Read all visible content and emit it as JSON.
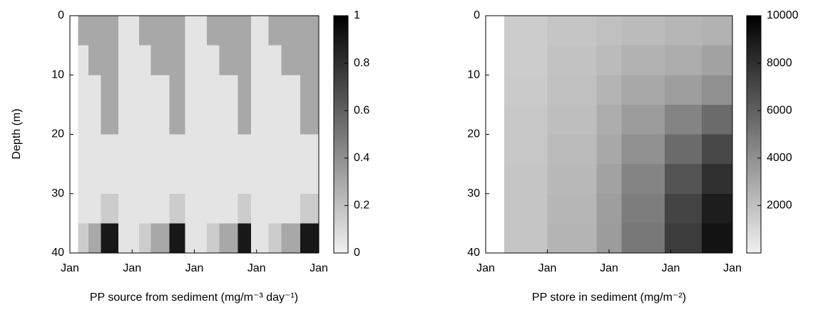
{
  "chart_data": [
    {
      "type": "heatmap",
      "xlabel": "PP source from sediment (mg/m⁻³ day⁻¹)",
      "ylabel": "Depth (m)",
      "xlim": [
        0,
        4
      ],
      "xticks": [
        {
          "value": 0,
          "label": "Jan"
        },
        {
          "value": 1,
          "label": "Jan"
        },
        {
          "value": 2,
          "label": "Jan"
        },
        {
          "value": 3,
          "label": "Jan"
        },
        {
          "value": 4,
          "label": "Jan"
        }
      ],
      "ylim": [
        0,
        40
      ],
      "y_inverted": true,
      "yticks": [
        0,
        10,
        20,
        30,
        40
      ],
      "x_edges": [
        0.13,
        0.3,
        0.5,
        0.78,
        1.11,
        1.3,
        1.6,
        1.85,
        2.2,
        2.4,
        2.7,
        2.91,
        3.19,
        3.4,
        3.7,
        4.0
      ],
      "y_edges": [
        0,
        5,
        10,
        15,
        20,
        25,
        30,
        35,
        40
      ],
      "values": [
        [
          0.3,
          0.3,
          0.3,
          0.05,
          0.3,
          0.3,
          0.3,
          0.05,
          0.3,
          0.3,
          0.3,
          0.05,
          0.3,
          0.3,
          0.3
        ],
        [
          0.05,
          0.3,
          0.3,
          0.05,
          0.05,
          0.3,
          0.3,
          0.05,
          0.05,
          0.3,
          0.3,
          0.05,
          0.05,
          0.3,
          0.3
        ],
        [
          0.05,
          0.05,
          0.3,
          0.05,
          0.05,
          0.05,
          0.3,
          0.05,
          0.05,
          0.05,
          0.3,
          0.05,
          0.05,
          0.05,
          0.3
        ],
        [
          0.05,
          0.05,
          0.3,
          0.05,
          0.05,
          0.05,
          0.3,
          0.05,
          0.05,
          0.05,
          0.3,
          0.05,
          0.05,
          0.05,
          0.3
        ],
        [
          0.05,
          0.05,
          0.05,
          0.05,
          0.05,
          0.05,
          0.05,
          0.05,
          0.05,
          0.05,
          0.05,
          0.05,
          0.05,
          0.05,
          0.05
        ],
        [
          0.05,
          0.05,
          0.05,
          0.05,
          0.05,
          0.05,
          0.05,
          0.05,
          0.05,
          0.05,
          0.05,
          0.05,
          0.05,
          0.05,
          0.05
        ],
        [
          0.05,
          0.05,
          0.15,
          0.05,
          0.05,
          0.05,
          0.15,
          0.05,
          0.05,
          0.05,
          0.15,
          0.05,
          0.05,
          0.05,
          0.15
        ],
        [
          0.15,
          0.3,
          0.9,
          0.05,
          0.15,
          0.3,
          0.9,
          0.05,
          0.15,
          0.3,
          0.9,
          0.05,
          0.15,
          0.3,
          0.9
        ]
      ],
      "clim": [
        0,
        1
      ],
      "cticks": [
        0,
        0.2,
        0.4,
        0.6,
        0.8,
        1
      ],
      "cmap": [
        "#f0f0f0",
        "#000000"
      ]
    },
    {
      "type": "heatmap",
      "xlabel": "PP store in sediment (mg/m⁻²)",
      "xlim": [
        0,
        4
      ],
      "xticks": [
        {
          "value": 0,
          "label": "Jan"
        },
        {
          "value": 1,
          "label": "Jan"
        },
        {
          "value": 2,
          "label": "Jan"
        },
        {
          "value": 3,
          "label": "Jan"
        },
        {
          "value": 4,
          "label": "Jan"
        }
      ],
      "ylim": [
        0,
        40
      ],
      "y_inverted": true,
      "yticks": [
        0,
        10,
        20,
        30,
        40
      ],
      "x_edges": [
        0.3,
        1.0,
        1.8,
        2.2,
        2.9,
        3.5,
        4.0
      ],
      "y_edges": [
        0,
        5,
        10,
        15,
        20,
        25,
        30,
        35,
        40
      ],
      "values": [
        [
          1500,
          1800,
          2000,
          2200,
          2400,
          2600
        ],
        [
          1500,
          1900,
          2200,
          2600,
          2800,
          3200
        ],
        [
          1600,
          2000,
          2500,
          3000,
          3400,
          4000
        ],
        [
          1700,
          2100,
          2800,
          3500,
          4500,
          5500
        ],
        [
          1700,
          2200,
          3000,
          4000,
          5500,
          7000
        ],
        [
          1800,
          2300,
          3200,
          4500,
          6500,
          8000
        ],
        [
          1800,
          2400,
          3400,
          4800,
          7200,
          8800
        ],
        [
          1800,
          2500,
          3500,
          5000,
          7500,
          9200
        ]
      ],
      "clim": [
        0,
        10000
      ],
      "cticks": [
        2000,
        4000,
        6000,
        8000,
        10000
      ],
      "cmap": [
        "#f0f0f0",
        "#000000"
      ]
    }
  ]
}
